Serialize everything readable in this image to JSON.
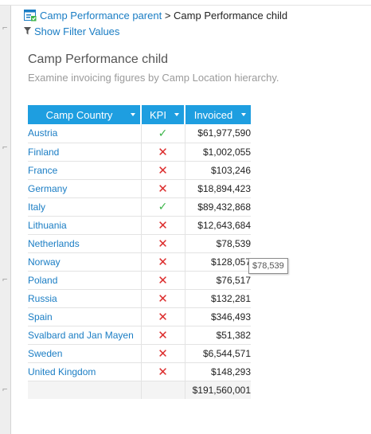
{
  "breadcrumb": {
    "parent": "Camp Performance parent",
    "separator": ">",
    "current": "Camp Performance child"
  },
  "filter_link": "Show Filter Values",
  "report": {
    "title": "Camp Performance child",
    "subtitle": "Examine invoicing figures by Camp Location hierarchy."
  },
  "table": {
    "headers": [
      "Camp Country",
      "KPI",
      "Invoiced"
    ],
    "rows": [
      {
        "country": "Austria",
        "kpi": "good",
        "invoiced": "$61,977,590"
      },
      {
        "country": "Finland",
        "kpi": "bad",
        "invoiced": "$1,002,055"
      },
      {
        "country": "France",
        "kpi": "bad",
        "invoiced": "$103,246"
      },
      {
        "country": "Germany",
        "kpi": "bad",
        "invoiced": "$18,894,423"
      },
      {
        "country": "Italy",
        "kpi": "good",
        "invoiced": "$89,432,868"
      },
      {
        "country": "Lithuania",
        "kpi": "bad",
        "invoiced": "$12,643,684"
      },
      {
        "country": "Netherlands",
        "kpi": "bad",
        "invoiced": "$78,539"
      },
      {
        "country": "Norway",
        "kpi": "bad",
        "invoiced": "$128,057"
      },
      {
        "country": "Poland",
        "kpi": "bad",
        "invoiced": "$76,517"
      },
      {
        "country": "Russia",
        "kpi": "bad",
        "invoiced": "$132,281"
      },
      {
        "country": "Spain",
        "kpi": "bad",
        "invoiced": "$346,493"
      },
      {
        "country": "Svalbard and Jan Mayen",
        "kpi": "bad",
        "invoiced": "$51,382"
      },
      {
        "country": "Sweden",
        "kpi": "bad",
        "invoiced": "$6,544,571"
      },
      {
        "country": "United Kingdom",
        "kpi": "bad",
        "invoiced": "$148,293"
      }
    ],
    "total": "$191,560,001"
  },
  "tooltip": "$78,539",
  "icons": {
    "report": "report-icon",
    "filter": "funnel-icon",
    "dropdown": "chevron-down-icon",
    "kpi_good": "checkmark-icon",
    "kpi_bad": "cross-icon"
  },
  "colors": {
    "header_bg": "#1e9ee0",
    "link": "#1a7dc4",
    "kpi_good": "#3db54a",
    "kpi_bad": "#dc2b2b"
  }
}
